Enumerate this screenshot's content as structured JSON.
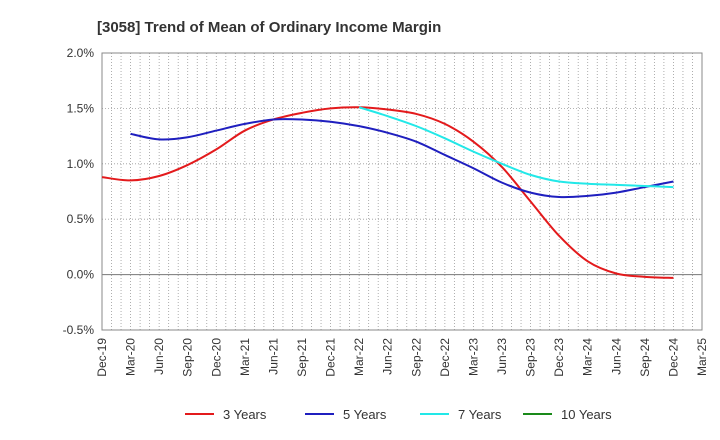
{
  "chart_data": {
    "type": "line",
    "title": "[3058]  Trend of Mean of Ordinary Income Margin",
    "xlabel": "",
    "ylabel": "",
    "ylim": [
      -0.5,
      2.0
    ],
    "y_ticks": [
      -0.5,
      0.0,
      0.5,
      1.0,
      1.5,
      2.0
    ],
    "y_tick_labels": [
      "-0.5%",
      "0.0%",
      "0.5%",
      "1.0%",
      "1.5%",
      "2.0%"
    ],
    "categories": [
      "Dec-19",
      "Mar-20",
      "Jun-20",
      "Sep-20",
      "Dec-20",
      "Mar-21",
      "Jun-21",
      "Sep-21",
      "Dec-21",
      "Mar-22",
      "Jun-22",
      "Sep-22",
      "Dec-22",
      "Mar-23",
      "Jun-23",
      "Sep-23",
      "Dec-23",
      "Mar-24",
      "Jun-24",
      "Sep-24",
      "Dec-24",
      "Mar-25"
    ],
    "grid": true,
    "legend_position": "bottom",
    "series": [
      {
        "name": "3 Years",
        "color": "#e31a1c",
        "values": [
          0.88,
          0.85,
          0.89,
          0.99,
          1.13,
          1.3,
          1.4,
          1.46,
          1.5,
          1.51,
          1.49,
          1.45,
          1.36,
          1.2,
          0.97,
          0.66,
          0.35,
          0.12,
          0.01,
          -0.02,
          -0.03,
          null
        ]
      },
      {
        "name": "5 Years",
        "color": "#1f1fbf",
        "values": [
          null,
          1.27,
          1.22,
          1.24,
          1.3,
          1.36,
          1.4,
          1.4,
          1.38,
          1.34,
          1.28,
          1.2,
          1.08,
          0.96,
          0.83,
          0.74,
          0.7,
          0.71,
          0.74,
          0.79,
          0.84,
          null
        ]
      },
      {
        "name": "7 Years",
        "color": "#22e8e8",
        "values": [
          null,
          null,
          null,
          null,
          null,
          null,
          null,
          null,
          null,
          1.51,
          1.43,
          1.34,
          1.23,
          1.11,
          1.0,
          0.9,
          0.84,
          0.82,
          0.81,
          0.8,
          0.79,
          null
        ]
      },
      {
        "name": "10 Years",
        "color": "#1a8a1a",
        "values": [
          null,
          null,
          null,
          null,
          null,
          null,
          null,
          null,
          null,
          null,
          null,
          null,
          null,
          null,
          null,
          null,
          null,
          null,
          null,
          null,
          null,
          null
        ]
      }
    ]
  }
}
